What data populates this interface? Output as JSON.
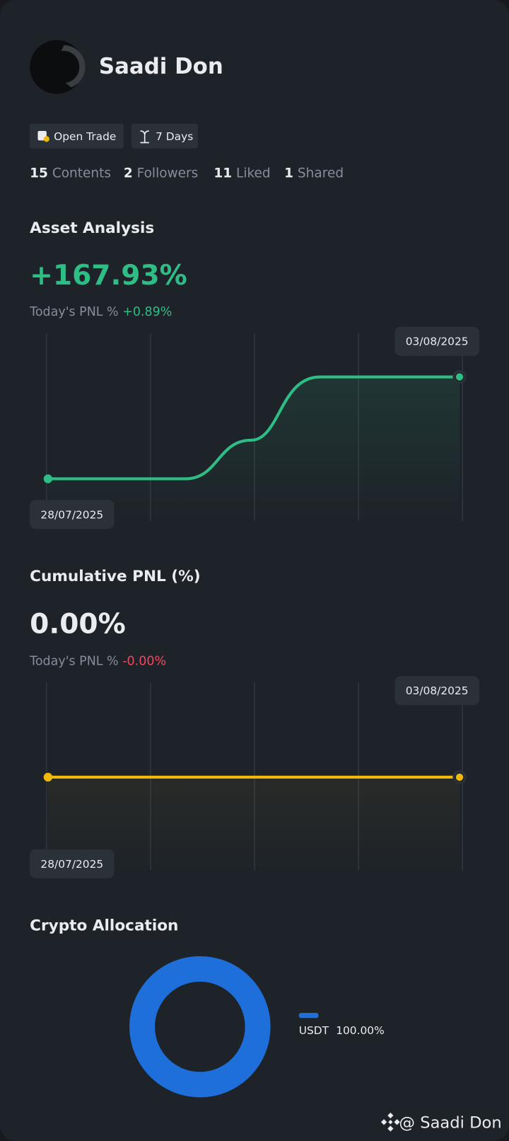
{
  "profile": {
    "name": "Saadi Don",
    "badges": [
      "Open Trade",
      "7 Days"
    ],
    "stats": [
      {
        "value": 15,
        "label": "Contents"
      },
      {
        "value": 2,
        "label": "Followers"
      },
      {
        "value": 11,
        "label": "Liked"
      },
      {
        "value": 1,
        "label": "Shared"
      }
    ]
  },
  "asset_analysis": {
    "title": "Asset Analysis",
    "value": "+167.93%",
    "pnl_label": "Today's PNL %",
    "pnl_value": "+0.89%",
    "start_date": "28/07/2025",
    "end_date": "03/08/2025"
  },
  "cumulative_pnl": {
    "title": "Cumulative PNL (%)",
    "value": "0.00%",
    "pnl_label": "Today's PNL %",
    "pnl_value": "-0.00%",
    "start_date": "28/07/2025",
    "end_date": "03/08/2025"
  },
  "crypto_allocation": {
    "title": "Crypto Allocation",
    "items": [
      {
        "name": "USDT",
        "value": 100,
        "value_label": "100.00%",
        "color": "#1e6fd9"
      }
    ]
  },
  "footer": {
    "at": "@",
    "name": "Saadi Don"
  }
}
